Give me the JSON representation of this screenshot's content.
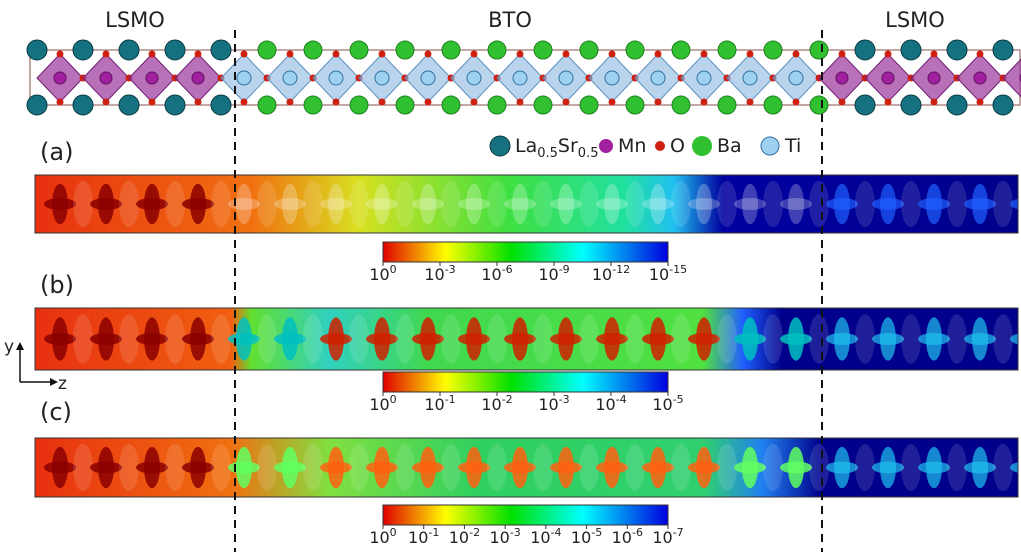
{
  "regions": [
    "LSMO",
    "BTO",
    "LSMO"
  ],
  "legend": [
    {
      "parts": [
        "La",
        "0.5",
        "Sr",
        "0.5"
      ]
    },
    {
      "label": "Mn"
    },
    {
      "label": "O"
    },
    {
      "label": "Ba"
    },
    {
      "label": "Ti"
    }
  ],
  "axes": {
    "y": "y",
    "z": "z"
  },
  "panels": [
    {
      "label": "(a)",
      "colorbar": [
        {
          "base": "10",
          "exp": "0"
        },
        {
          "base": "10",
          "exp": "-3"
        },
        {
          "base": "10",
          "exp": "-6"
        },
        {
          "base": "10",
          "exp": "-9"
        },
        {
          "base": "10",
          "exp": "-12"
        },
        {
          "base": "10",
          "exp": "-15"
        }
      ]
    },
    {
      "label": "(b)",
      "colorbar": [
        {
          "base": "10",
          "exp": "0"
        },
        {
          "base": "10",
          "exp": "-1"
        },
        {
          "base": "10",
          "exp": "-2"
        },
        {
          "base": "10",
          "exp": "-3"
        },
        {
          "base": "10",
          "exp": "-4"
        },
        {
          "base": "10",
          "exp": "-5"
        }
      ]
    },
    {
      "label": "(c)",
      "colorbar": [
        {
          "base": "10",
          "exp": "0"
        },
        {
          "base": "10",
          "exp": "-1"
        },
        {
          "base": "10",
          "exp": "-2"
        },
        {
          "base": "10",
          "exp": "-3"
        },
        {
          "base": "10",
          "exp": "-4"
        },
        {
          "base": "10",
          "exp": "-5"
        },
        {
          "base": "10",
          "exp": "-6"
        },
        {
          "base": "10",
          "exp": "-7"
        }
      ]
    }
  ]
}
